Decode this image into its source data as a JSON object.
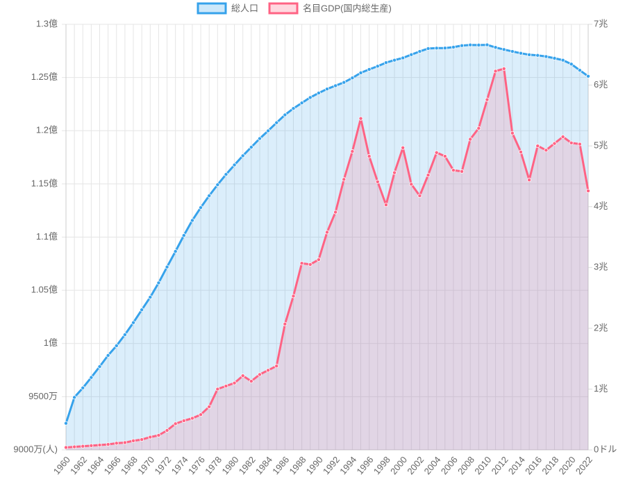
{
  "chart_data": {
    "type": "line",
    "categories": [
      "1960",
      null,
      "1962",
      null,
      "1964",
      null,
      "1966",
      null,
      "1968",
      null,
      "1970",
      null,
      "1972",
      null,
      "1974",
      null,
      "1976",
      null,
      "1978",
      null,
      "1980",
      null,
      "1982",
      null,
      "1984",
      null,
      "1986",
      null,
      "1988",
      null,
      "1990",
      null,
      "1992",
      null,
      "1994",
      null,
      "1996",
      null,
      "1998",
      null,
      "2000",
      null,
      "2002",
      null,
      "2004",
      null,
      "2006",
      null,
      "2008",
      null,
      "2010",
      null,
      "2012",
      null,
      "2014",
      null,
      "2016",
      null,
      "2018",
      null,
      "2020",
      null,
      "2022"
    ],
    "series": [
      {
        "name": "総人口",
        "color": "#36a2eb",
        "values": [
          92500000,
          94940000,
          95830000,
          96810000,
          97830000,
          98880000,
          99790000,
          100830000,
          101960000,
          103170000,
          104350000,
          105700000,
          107190000,
          108660000,
          110160000,
          111570000,
          112780000,
          113890000,
          114920000,
          115890000,
          116780000,
          117650000,
          118450000,
          119260000,
          119990000,
          120750000,
          121490000,
          122090000,
          122610000,
          123120000,
          123540000,
          123920000,
          124230000,
          124540000,
          124960000,
          125440000,
          125760000,
          126060000,
          126400000,
          126630000,
          126840000,
          127150000,
          127450000,
          127720000,
          127760000,
          127770000,
          127850000,
          128000000,
          128060000,
          128050000,
          128070000,
          127830000,
          127630000,
          127450000,
          127280000,
          127140000,
          127080000,
          126970000,
          126810000,
          126630000,
          126260000,
          125680000,
          125120000
        ]
      },
      {
        "name": "名目GDP(国内総生産)",
        "color": "#ff6384",
        "axis": "y2",
        "values": [
          0.04,
          0.05,
          0.06,
          0.07,
          0.08,
          0.09,
          0.11,
          0.12,
          0.15,
          0.17,
          0.21,
          0.24,
          0.32,
          0.43,
          0.48,
          0.52,
          0.58,
          0.71,
          1.0,
          1.05,
          1.1,
          1.22,
          1.13,
          1.24,
          1.31,
          1.38,
          2.07,
          2.53,
          3.07,
          3.05,
          3.13,
          3.58,
          3.91,
          4.45,
          4.91,
          5.45,
          4.83,
          4.41,
          4.03,
          4.56,
          4.97,
          4.37,
          4.18,
          4.52,
          4.89,
          4.83,
          4.6,
          4.58,
          5.11,
          5.29,
          5.76,
          6.23,
          6.27,
          5.21,
          4.9,
          4.44,
          5.0,
          4.93,
          5.04,
          5.15,
          5.05,
          5.03,
          4.26
        ]
      }
    ],
    "ylim": [
      90000000,
      130000000
    ],
    "yticks": [
      {
        "value": 90000000,
        "label": "9000万(人)"
      },
      {
        "value": 95000000,
        "label": "9500万"
      },
      {
        "value": 100000000,
        "label": "1億"
      },
      {
        "value": 105000000,
        "label": "1.05億"
      },
      {
        "value": 110000000,
        "label": "1.1億"
      },
      {
        "value": 115000000,
        "label": "1.15億"
      },
      {
        "value": 120000000,
        "label": "1.2億"
      },
      {
        "value": 125000000,
        "label": "1.25億"
      },
      {
        "value": 130000000,
        "label": "1.3億"
      }
    ],
    "y2lim": [
      0,
      7
    ],
    "y2ticks": [
      {
        "value": 0,
        "label": "0ドル"
      },
      {
        "value": 1,
        "label": "1兆"
      },
      {
        "value": 2,
        "label": "2兆"
      },
      {
        "value": 3,
        "label": "3兆"
      },
      {
        "value": 4,
        "label": "4兆"
      },
      {
        "value": 5,
        "label": "5兆"
      },
      {
        "value": 6,
        "label": "6兆"
      },
      {
        "value": 7,
        "label": "7兆"
      }
    ],
    "grid": true,
    "legend": "top"
  }
}
